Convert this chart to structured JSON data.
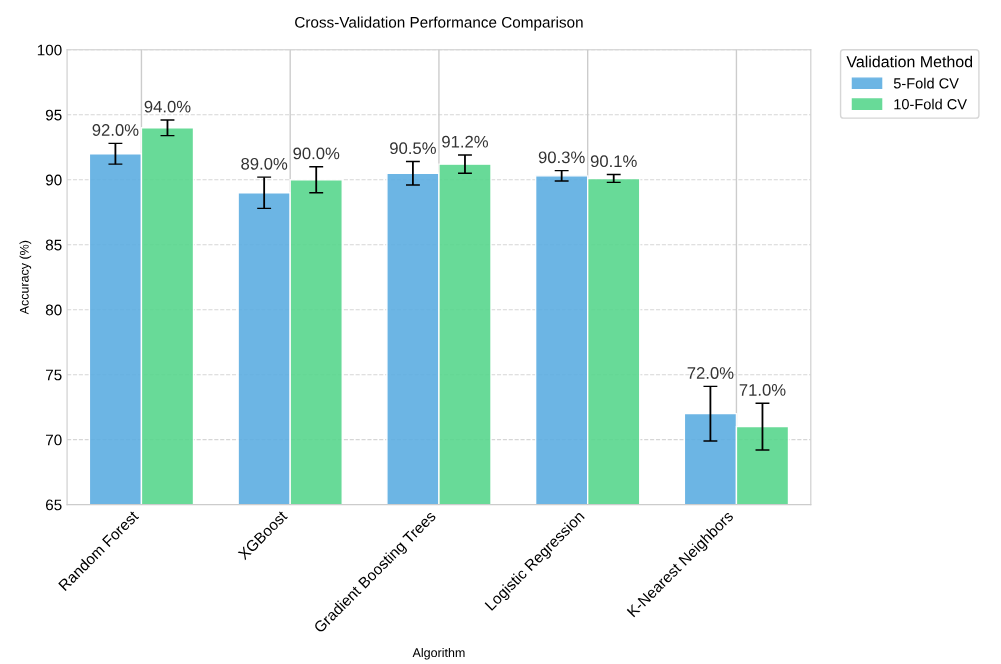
{
  "chart_data": {
    "type": "bar",
    "title": "Cross-Validation Performance Comparison",
    "xlabel": "Algorithm",
    "ylabel": "Accuracy (%)",
    "legend_title": "Validation Method",
    "categories": [
      "Random Forest",
      "XGBoost",
      "Gradient Boosting Trees",
      "Logistic Regression",
      "K-Nearest Neighbors"
    ],
    "series": [
      {
        "name": "5-Fold CV",
        "color": "#5dade2",
        "values": [
          92.0,
          89.0,
          90.5,
          90.3,
          72.0
        ],
        "errors": [
          0.8,
          1.2,
          0.9,
          0.4,
          2.1
        ],
        "value_labels": [
          "92.0%",
          "89.0%",
          "90.5%",
          "90.3%",
          "72.0%"
        ]
      },
      {
        "name": "10-Fold CV",
        "color": "#58d68d",
        "values": [
          94.0,
          90.0,
          91.2,
          90.1,
          71.0
        ],
        "errors": [
          0.6,
          1.0,
          0.7,
          0.3,
          1.8
        ],
        "value_labels": [
          "94.0%",
          "90.0%",
          "91.2%",
          "90.1%",
          "71.0%"
        ]
      }
    ],
    "ylim": [
      65,
      100
    ],
    "yticks": [
      65,
      70,
      75,
      80,
      85,
      90,
      95,
      100
    ],
    "grid": true,
    "legend": "top right"
  }
}
